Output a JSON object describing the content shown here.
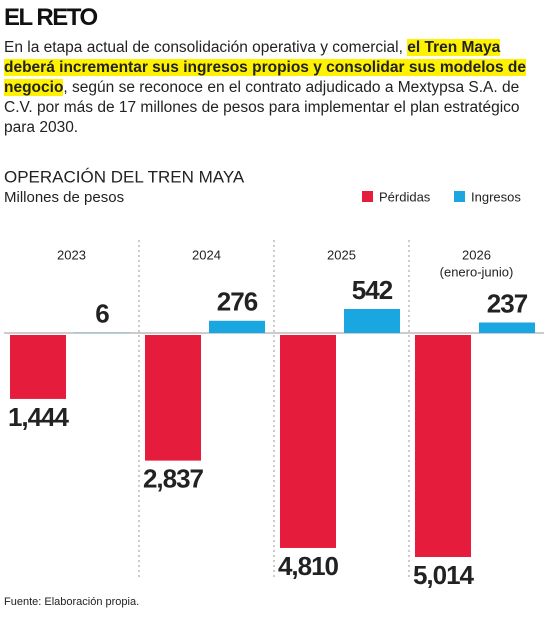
{
  "header": {
    "title": "EL RETO",
    "intro": [
      "En la etapa actual de consolidación operativa y comercial, ",
      "el Tren Maya deberá incrementar sus ingresos propios y consolidar sus modelos de negocio",
      ", según se reconoce en el contrato adjudicado a Mextypsa S.A. de C.V. por más de 17 millones de pesos para implementar el plan estratégico para 2030."
    ]
  },
  "chart_data": {
    "type": "bar",
    "title": "OPERACIÓN DEL TREN MAYA",
    "subtitle": "Millones de pesos",
    "categories": [
      "2023",
      "2024",
      "2025",
      "2026"
    ],
    "annotation": "(enero-junio)",
    "legend": "top-right",
    "series": [
      {
        "name": "Pérdidas",
        "color": "#e51c3c",
        "direction": "down",
        "values": [
          1444,
          2837,
          4810,
          5014
        ],
        "value_labels": [
          "1,444",
          "2,837",
          "4,810",
          "5,014"
        ]
      },
      {
        "name": "Ingresos",
        "color": "#1aa6e0",
        "direction": "up",
        "values": [
          6,
          276,
          542,
          237
        ]
      }
    ]
  },
  "source": "Fuente: Elaboración propia."
}
